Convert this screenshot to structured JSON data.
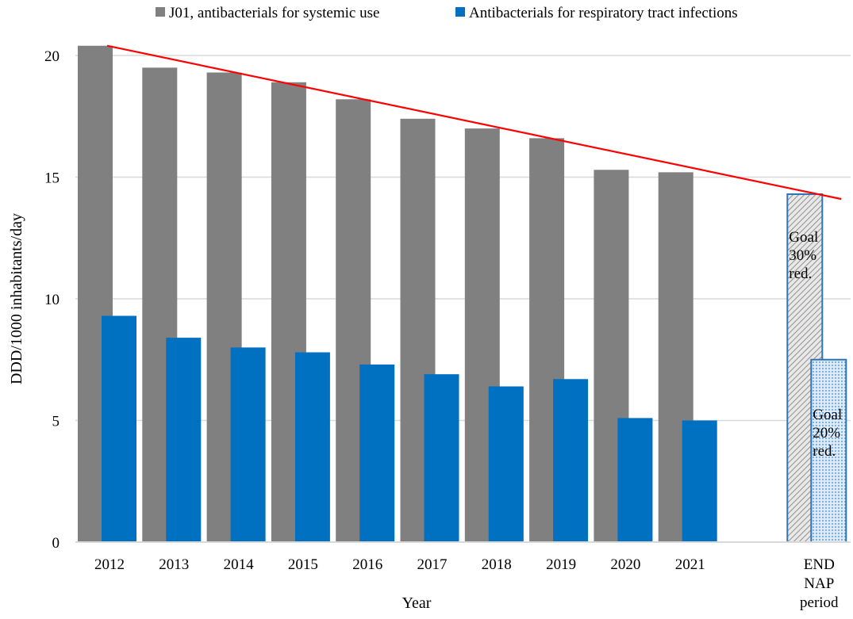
{
  "chart_data": {
    "type": "bar",
    "title": "",
    "xlabel": "Year",
    "ylabel": "DDD/1000 inhabitants/day",
    "ylim": [
      0,
      20
    ],
    "yticks": [
      0,
      5,
      10,
      15,
      20
    ],
    "grid": true,
    "legend_placement": "top",
    "categories": [
      "2012",
      "2013",
      "2014",
      "2015",
      "2016",
      "2017",
      "2018",
      "2019",
      "2020",
      "2021",
      "",
      "END NAP period"
    ],
    "series": [
      {
        "name": "J01, antibacterials for systemic use",
        "color": "#808080",
        "values": [
          20.4,
          19.5,
          19.3,
          18.9,
          18.2,
          17.4,
          17.0,
          16.6,
          15.3,
          15.2,
          null,
          14.3
        ]
      },
      {
        "name": "Antibacterials for respiratory tract infections",
        "color": "#0070C0",
        "values": [
          9.3,
          8.4,
          8.0,
          7.8,
          7.3,
          6.9,
          6.4,
          6.7,
          5.1,
          5.0,
          null,
          7.5
        ]
      }
    ],
    "goal_annotations": [
      "Goal 30% red.",
      "Goal 20% red."
    ],
    "trendline": {
      "color": "#FF0000",
      "from": [
        "2012",
        20.4
      ],
      "to": [
        "END NAP period",
        14.1
      ]
    }
  }
}
